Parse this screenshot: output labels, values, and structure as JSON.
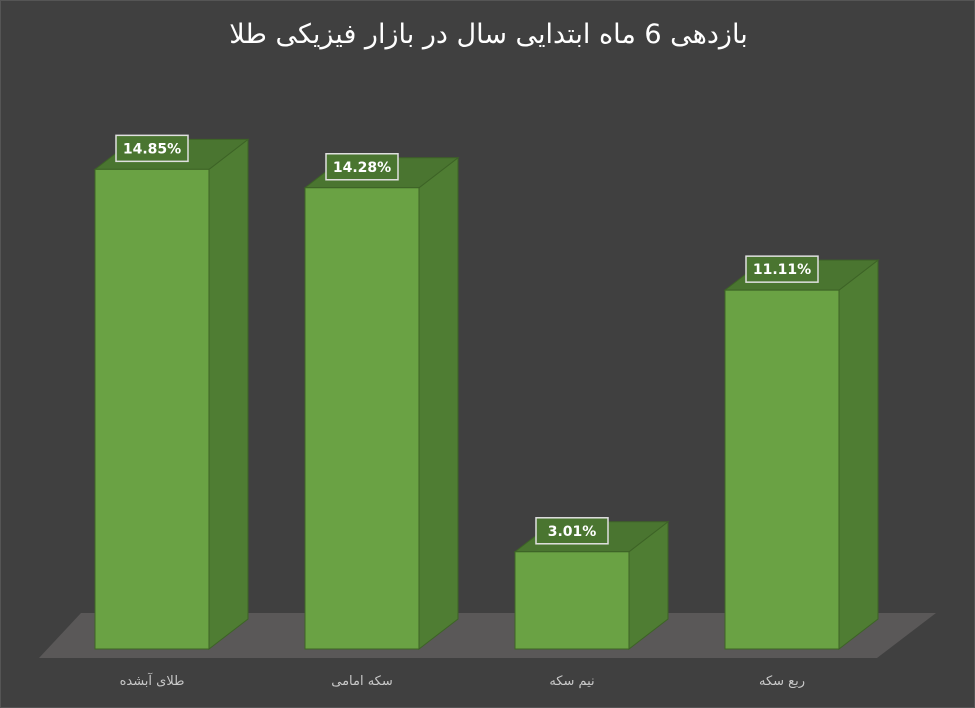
{
  "chart_data": {
    "type": "bar",
    "title": "بازدهی 6 ماه ابتدایی سال در بازار فیزیکی طلا",
    "categories": [
      "طلای آبشده",
      "سکه امامی",
      "نیم سکه",
      "ربع سکه"
    ],
    "values": [
      14.85,
      14.28,
      3.01,
      11.11
    ],
    "data_labels": [
      "14.85%",
      "14.28%",
      "3.01%",
      "11.11%"
    ],
    "style": "3d-column",
    "grid": false,
    "legend": "none",
    "colors": {
      "background": "#404040",
      "bar_front": "#6aa244",
      "bar_side": "#4f7d33",
      "bar_top": "#4a7530",
      "floor": "#5a5858"
    }
  }
}
